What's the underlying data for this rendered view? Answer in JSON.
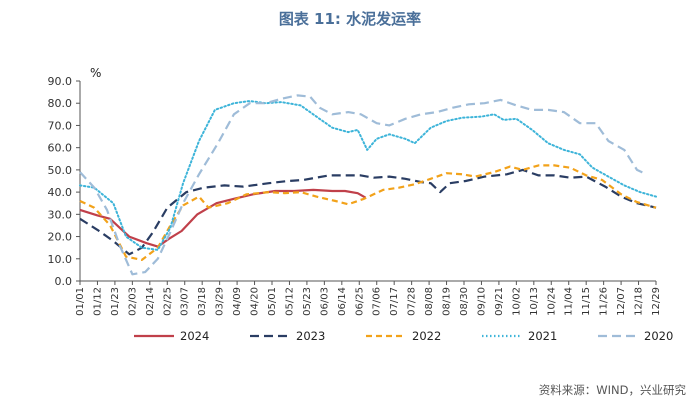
{
  "chart_data": {
    "type": "line",
    "title": "图表 11: 水泥发运率",
    "ylabel": "%",
    "xlabel": "",
    "ylim": [
      0,
      90
    ],
    "yticks": [
      "0.0",
      "10.0",
      "20.0",
      "30.0",
      "40.0",
      "50.0",
      "60.0",
      "70.0",
      "80.0",
      "90.0"
    ],
    "x": [
      "01/01",
      "01/12",
      "01/23",
      "02/03",
      "02/14",
      "02/25",
      "03/07",
      "03/18",
      "03/29",
      "04/09",
      "04/20",
      "05/01",
      "05/12",
      "05/23",
      "06/03",
      "06/14",
      "06/25",
      "07/06",
      "07/17",
      "07/28",
      "08/08",
      "08/19",
      "08/30",
      "09/10",
      "09/21",
      "10/02",
      "10/13",
      "10/24",
      "11/04",
      "11/15",
      "11/26",
      "12/07",
      "12/18",
      "12/29"
    ],
    "x_range": [
      1,
      364
    ],
    "series": [
      {
        "name": "2024",
        "color": "#c0404a",
        "dash": "solid",
        "points": [
          [
            1,
            32
          ],
          [
            12,
            29.5
          ],
          [
            20,
            28
          ],
          [
            32,
            20
          ],
          [
            43,
            17
          ],
          [
            50,
            15.5
          ],
          [
            57,
            19
          ],
          [
            65,
            22.5
          ],
          [
            75,
            30
          ],
          [
            87,
            35
          ],
          [
            98,
            37
          ],
          [
            110,
            39
          ],
          [
            124,
            40.5
          ],
          [
            136,
            40.5
          ],
          [
            148,
            41
          ],
          [
            160,
            40.5
          ],
          [
            168,
            40.5
          ],
          [
            176,
            39.5
          ],
          [
            181,
            37.5
          ]
        ]
      },
      {
        "name": "2023",
        "color": "#2a3d63",
        "dash": "long",
        "points": [
          [
            1,
            28
          ],
          [
            12,
            23
          ],
          [
            22,
            18
          ],
          [
            32,
            12
          ],
          [
            40,
            15
          ],
          [
            47,
            22
          ],
          [
            56,
            33
          ],
          [
            68,
            40
          ],
          [
            79,
            42
          ],
          [
            92,
            43
          ],
          [
            104,
            42.5
          ],
          [
            120,
            44
          ],
          [
            132,
            45
          ],
          [
            142,
            45.5
          ],
          [
            158,
            47.5
          ],
          [
            170,
            47.5
          ],
          [
            178,
            47.5
          ],
          [
            186,
            46.5
          ],
          [
            196,
            47
          ],
          [
            206,
            46
          ],
          [
            216,
            44.5
          ],
          [
            222,
            44
          ],
          [
            228,
            40
          ],
          [
            234,
            44
          ],
          [
            244,
            45
          ],
          [
            256,
            47
          ],
          [
            270,
            48
          ],
          [
            280,
            50
          ],
          [
            290,
            47.5
          ],
          [
            300,
            47.5
          ],
          [
            310,
            46.5
          ],
          [
            320,
            47
          ],
          [
            332,
            42.5
          ],
          [
            342,
            38
          ],
          [
            352,
            35
          ],
          [
            364,
            33
          ]
        ]
      },
      {
        "name": "2022",
        "color": "#f2a21a",
        "dash": "medium",
        "points": [
          [
            1,
            36
          ],
          [
            10,
            33
          ],
          [
            20,
            25
          ],
          [
            30,
            11
          ],
          [
            40,
            9.5
          ],
          [
            50,
            15
          ],
          [
            58,
            25
          ],
          [
            66,
            34
          ],
          [
            76,
            38
          ],
          [
            82,
            33
          ],
          [
            94,
            35
          ],
          [
            106,
            39
          ],
          [
            120,
            40
          ],
          [
            130,
            39.5
          ],
          [
            140,
            40
          ],
          [
            150,
            38
          ],
          [
            162,
            36
          ],
          [
            170,
            34.5
          ],
          [
            180,
            37
          ],
          [
            192,
            41
          ],
          [
            202,
            42
          ],
          [
            212,
            43.5
          ],
          [
            222,
            46
          ],
          [
            232,
            48.5
          ],
          [
            242,
            48
          ],
          [
            250,
            47
          ],
          [
            262,
            49
          ],
          [
            272,
            51.5
          ],
          [
            280,
            50
          ],
          [
            290,
            52
          ],
          [
            300,
            52
          ],
          [
            310,
            51
          ],
          [
            320,
            47.5
          ],
          [
            330,
            45.5
          ],
          [
            342,
            39
          ],
          [
            352,
            35.5
          ],
          [
            364,
            33
          ]
        ]
      },
      {
        "name": "2021",
        "color": "#3db4d9",
        "dash": "dotted",
        "points": [
          [
            1,
            43
          ],
          [
            10,
            42
          ],
          [
            22,
            35
          ],
          [
            30,
            20
          ],
          [
            40,
            15
          ],
          [
            50,
            14
          ],
          [
            58,
            24
          ],
          [
            66,
            44
          ],
          [
            76,
            63
          ],
          [
            86,
            77
          ],
          [
            98,
            80
          ],
          [
            108,
            81
          ],
          [
            118,
            80
          ],
          [
            128,
            80.5
          ],
          [
            140,
            79
          ],
          [
            150,
            74
          ],
          [
            160,
            69
          ],
          [
            170,
            67
          ],
          [
            176,
            68
          ],
          [
            182,
            59
          ],
          [
            188,
            64
          ],
          [
            196,
            66
          ],
          [
            206,
            64
          ],
          [
            212,
            62
          ],
          [
            222,
            69
          ],
          [
            232,
            72
          ],
          [
            242,
            73.5
          ],
          [
            254,
            74
          ],
          [
            262,
            75
          ],
          [
            268,
            72.5
          ],
          [
            276,
            73
          ],
          [
            286,
            68
          ],
          [
            296,
            62
          ],
          [
            306,
            59
          ],
          [
            316,
            57
          ],
          [
            324,
            51
          ],
          [
            334,
            47
          ],
          [
            344,
            43
          ],
          [
            354,
            40
          ],
          [
            364,
            38
          ]
        ]
      },
      {
        "name": "2020",
        "color": "#9fbcd8",
        "dash": "long",
        "points": [
          [
            1,
            49
          ],
          [
            10,
            42
          ],
          [
            18,
            32
          ],
          [
            26,
            16
          ],
          [
            34,
            3
          ],
          [
            42,
            4
          ],
          [
            50,
            10
          ],
          [
            58,
            22
          ],
          [
            66,
            35
          ],
          [
            76,
            48
          ],
          [
            88,
            62
          ],
          [
            98,
            75
          ],
          [
            108,
            80
          ],
          [
            118,
            80
          ],
          [
            128,
            82
          ],
          [
            138,
            83.5
          ],
          [
            146,
            83
          ],
          [
            152,
            78
          ],
          [
            160,
            75
          ],
          [
            170,
            76
          ],
          [
            178,
            75
          ],
          [
            188,
            71
          ],
          [
            196,
            70
          ],
          [
            206,
            73
          ],
          [
            216,
            75
          ],
          [
            226,
            76
          ],
          [
            236,
            78
          ],
          [
            246,
            79.5
          ],
          [
            256,
            80
          ],
          [
            266,
            81.5
          ],
          [
            276,
            79
          ],
          [
            286,
            77
          ],
          [
            296,
            77
          ],
          [
            306,
            76
          ],
          [
            316,
            71
          ],
          [
            326,
            71
          ],
          [
            334,
            63
          ],
          [
            344,
            59
          ],
          [
            352,
            50
          ],
          [
            358,
            48
          ]
        ]
      }
    ],
    "legend": [
      "2024",
      "2023",
      "2022",
      "2021",
      "2020"
    ],
    "legend_position": "bottom",
    "source": "资料来源：WIND，兴业研究"
  }
}
